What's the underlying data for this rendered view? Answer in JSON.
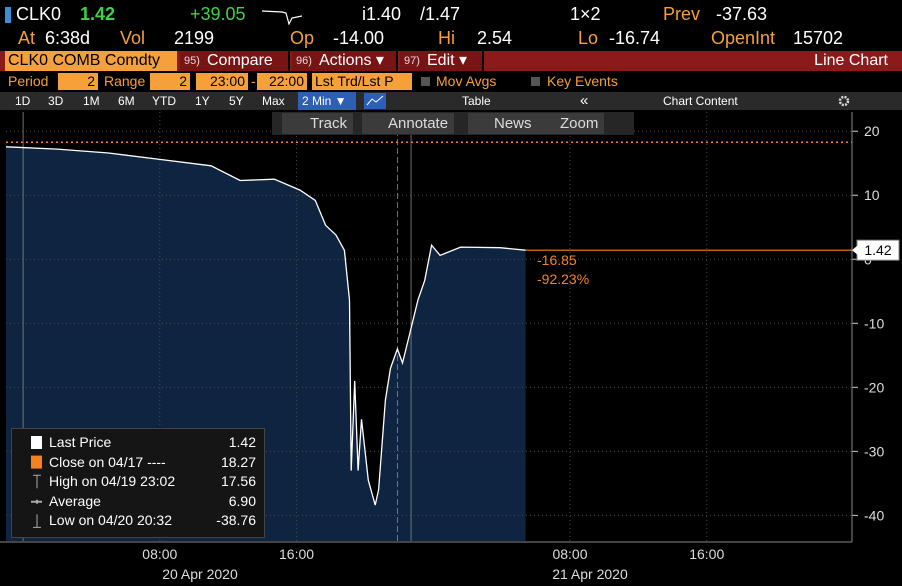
{
  "header": {
    "ticker": "CLK0",
    "last": "1.42",
    "change": "+39.05",
    "bid": "i1.40",
    "ask": "/1.47",
    "size": "1×2",
    "prev_label": "Prev",
    "prev": "-37.63",
    "at_label": "At",
    "at": "6:38d",
    "vol_label": "Vol",
    "vol": "2199",
    "op_label": "Op",
    "op": "-14.00",
    "hi_label": "Hi",
    "hi": "2.54",
    "lo_label": "Lo",
    "lo": "-16.74",
    "oi_label": "OpenInt",
    "oi": "15702"
  },
  "menu": {
    "security": "CLK0 COMB Comdty",
    "items": [
      {
        "key": "95)",
        "label": "Compare"
      },
      {
        "key": "96)",
        "label": "Actions ▾"
      },
      {
        "key": "97)",
        "label": "Edit ▾"
      }
    ],
    "view": "Line Chart"
  },
  "controls": {
    "period_label": "Period",
    "period": "2",
    "range_label": "Range",
    "range": "2",
    "start": "23:00",
    "dash": "-",
    "end": "22:00",
    "mode": "Lst Trd/Lst P",
    "mov_avgs": "Mov Avgs",
    "key_events": "Key Events"
  },
  "toolbar": {
    "ranges": [
      "1D",
      "3D",
      "1M",
      "6M",
      "YTD",
      "1Y",
      "5Y",
      "Max"
    ],
    "interval": "2 Min ▼",
    "table": "Table",
    "back": "«",
    "chart_content": "Chart Content"
  },
  "tools": [
    "Track",
    "Annotate",
    "News",
    "Zoom"
  ],
  "chart_data": {
    "type": "line",
    "x": [
      -1.0,
      2.0,
      5.0,
      8.0,
      11.0,
      12.7,
      14.7,
      16.2,
      17.1,
      17.7,
      18.3,
      18.8,
      19.1,
      19.2,
      19.4,
      19.6,
      19.8,
      20.2,
      20.6,
      20.8,
      21.2,
      21.5,
      21.9,
      22.2,
      22.6,
      23.1,
      23.5,
      23.9,
      24.4,
      25.6,
      27.9,
      29.4
    ],
    "series": [
      {
        "name": "Last Price",
        "color": "#ffffff",
        "fill": "#0f2440",
        "values": [
          17.56,
          17.2,
          16.6,
          15.6,
          14.6,
          12.3,
          12.5,
          10.8,
          9.2,
          5.3,
          3.8,
          1.4,
          -6.4,
          -33,
          -19,
          -33,
          -25,
          -34.5,
          -38.4,
          -36,
          -22,
          -17,
          -14,
          -16.2,
          -11.9,
          -6.4,
          -3.3,
          2.2,
          0.6,
          1.9,
          1.8,
          1.42
        ]
      }
    ],
    "xlim": [
      -1,
      48.5
    ],
    "xticks": [
      {
        "value": 8,
        "label": "08:00"
      },
      {
        "value": 16,
        "label": "16:00"
      },
      {
        "value": 32,
        "label": "08:00"
      },
      {
        "value": 40,
        "label": "16:00"
      }
    ],
    "date_labels": [
      "20 Apr 2020",
      "21 Apr 2020"
    ],
    "ylim": [
      -44,
      23
    ],
    "yticks": [
      20,
      10,
      0,
      -10,
      -20,
      -30,
      -40
    ],
    "grid": true,
    "session_lines": [
      0,
      21.9,
      22.7
    ],
    "reference_lines": [
      {
        "value": 18.27,
        "color": "#f58220"
      }
    ],
    "last_price": 1.42,
    "last_price_color": "#f58220",
    "annotations": [
      "-16.85",
      "-92.23%"
    ],
    "legend_items": [
      {
        "label": "Last Price",
        "value": "1.42"
      },
      {
        "label": "Close on 04/17 ----",
        "value": "18.27"
      },
      {
        "label": "High on 04/19 23:02",
        "value": "17.56"
      },
      {
        "label": "Average",
        "value": "6.90"
      },
      {
        "label": "Low on 04/20 20:32",
        "value": "-38.76"
      }
    ]
  }
}
